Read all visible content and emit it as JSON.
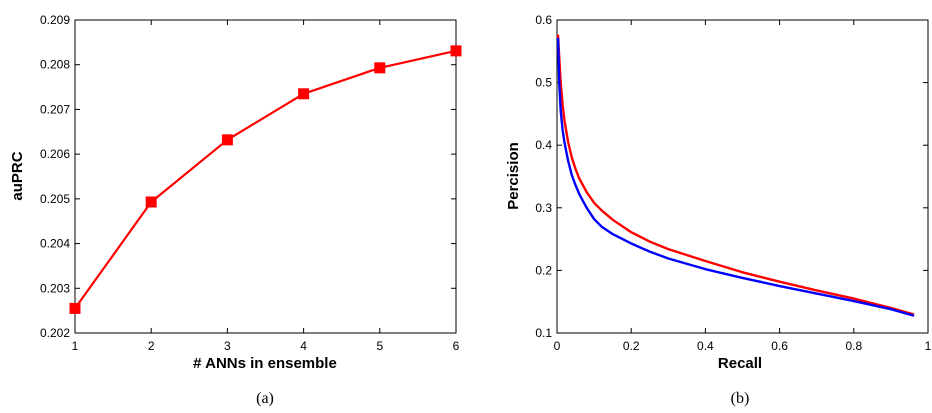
{
  "chart_data": [
    {
      "type": "line",
      "caption": "(a)",
      "xlabel": "# ANNs in ensemble",
      "ylabel": "auPRC",
      "xlim": [
        1,
        6
      ],
      "ylim": [
        0.202,
        0.209
      ],
      "xticks": [
        1,
        2,
        3,
        4,
        5,
        6
      ],
      "xtick_labels": [
        "1",
        "2",
        "3",
        "4",
        "5",
        "6"
      ],
      "yticks": [
        0.202,
        0.203,
        0.204,
        0.205,
        0.206,
        0.207,
        0.208,
        0.209
      ],
      "ytick_labels": [
        "0.202",
        "0.203",
        "0.204",
        "0.205",
        "0.206",
        "0.207",
        "0.208",
        "0.209"
      ],
      "grid": false,
      "series": [
        {
          "color": "#ff0000",
          "marker": "square",
          "x": [
            1,
            2,
            3,
            4,
            5,
            6
          ],
          "y": [
            0.20255,
            0.20493,
            0.20632,
            0.20735,
            0.20793,
            0.20831
          ]
        }
      ]
    },
    {
      "type": "line",
      "caption": "(b)",
      "xlabel": "Recall",
      "ylabel": "Percision",
      "xlim": [
        0,
        1
      ],
      "ylim": [
        0.1,
        0.6
      ],
      "xticks": [
        0,
        0.2,
        0.4,
        0.6,
        0.8,
        1
      ],
      "xtick_labels": [
        "0",
        "0.2",
        "0.4",
        "0.6",
        "0.8",
        "1"
      ],
      "yticks": [
        0.1,
        0.2,
        0.3,
        0.4,
        0.5,
        0.6
      ],
      "ytick_labels": [
        "0.1",
        "0.2",
        "0.3",
        "0.4",
        "0.5",
        "0.6"
      ],
      "grid": false,
      "series": [
        {
          "color": "#ff0000",
          "x": [
            0.003,
            0.006,
            0.01,
            0.015,
            0.02,
            0.03,
            0.04,
            0.05,
            0.06,
            0.08,
            0.1,
            0.12,
            0.15,
            0.2,
            0.25,
            0.3,
            0.4,
            0.5,
            0.6,
            0.7,
            0.8,
            0.9,
            0.96
          ],
          "y": [
            0.575,
            0.54,
            0.5,
            0.465,
            0.44,
            0.405,
            0.38,
            0.362,
            0.347,
            0.325,
            0.308,
            0.296,
            0.281,
            0.261,
            0.246,
            0.234,
            0.215,
            0.197,
            0.182,
            0.168,
            0.155,
            0.14,
            0.13
          ]
        },
        {
          "color": "#0000ff",
          "x": [
            0.003,
            0.006,
            0.01,
            0.015,
            0.02,
            0.03,
            0.04,
            0.05,
            0.06,
            0.08,
            0.1,
            0.12,
            0.15,
            0.2,
            0.25,
            0.3,
            0.4,
            0.5,
            0.6,
            0.7,
            0.8,
            0.9,
            0.96
          ],
          "y": [
            0.57,
            0.5,
            0.455,
            0.425,
            0.405,
            0.375,
            0.352,
            0.336,
            0.322,
            0.3,
            0.282,
            0.27,
            0.258,
            0.243,
            0.23,
            0.219,
            0.202,
            0.188,
            0.175,
            0.163,
            0.151,
            0.138,
            0.128
          ]
        }
      ]
    }
  ]
}
